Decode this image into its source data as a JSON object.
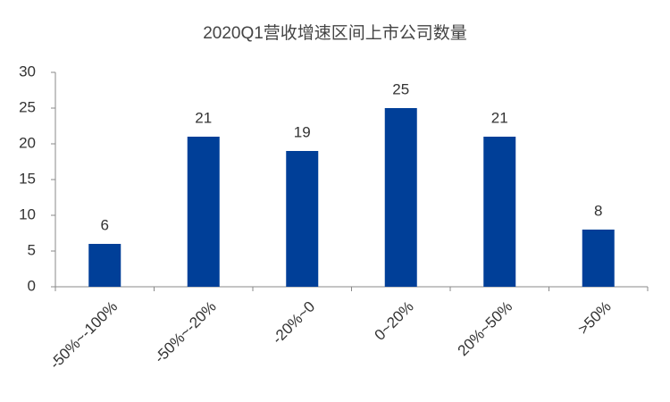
{
  "chart_data": {
    "type": "bar",
    "title": "2020Q1营收增速区间上市公司数量",
    "categories": [
      "-50%~-100%",
      "-50%~-20%",
      "-20%~0",
      "0~20%",
      "20%~50%",
      ">50%"
    ],
    "values": [
      6,
      21,
      19,
      25,
      21,
      8
    ],
    "color": "#003f98",
    "ylim": [
      0,
      30
    ],
    "yticks": [
      0,
      5,
      10,
      15,
      20,
      25,
      30
    ],
    "grid": false,
    "data_labels": true
  }
}
